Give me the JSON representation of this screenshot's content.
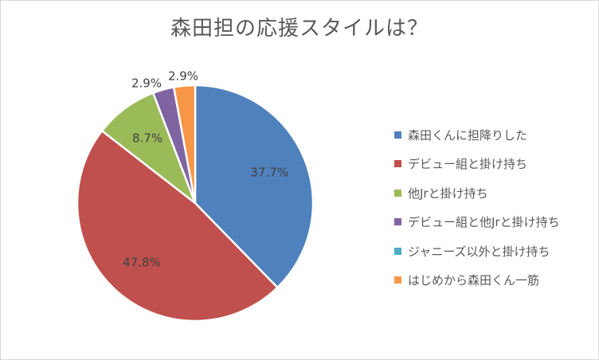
{
  "chart_data": {
    "type": "pie",
    "title": "森田担の応援スタイルは？",
    "start_angle_deg": 0,
    "direction": "clockwise",
    "legend_position": "right",
    "slices": [
      {
        "label": "森田くんに担降りした",
        "value": 37.7,
        "data_label": "37.7%",
        "color": "#4f81bd"
      },
      {
        "label": "デビュー組と掛け持ち",
        "value": 47.8,
        "data_label": "47.8%",
        "color": "#c0504d"
      },
      {
        "label": "他Jrと掛け持ち",
        "value": 8.7,
        "data_label": "8.7%",
        "color": "#9bbb59"
      },
      {
        "label": "デビュー組と他Jrと掛け持ち",
        "value": 2.9,
        "data_label": "2.9%",
        "color": "#8064a2"
      },
      {
        "label": "ジャニーズ以外と掛け持ち",
        "value": 0,
        "data_label": "",
        "color": "#4bacc6"
      },
      {
        "label": "はじめから森田くん一筋",
        "value": 2.9,
        "data_label": "2.9%",
        "color": "#f79646"
      }
    ]
  }
}
